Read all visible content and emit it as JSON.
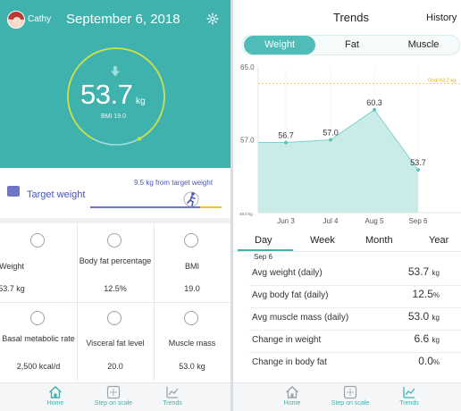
{
  "home": {
    "user_name": "Cathy",
    "date": "September 6, 2018",
    "weight_value": "53.7",
    "weight_unit": "kg",
    "bmi_text": "BMI 19.0",
    "goal_progress": 0.84,
    "target_label": "Target weight",
    "target_note": "9.5 kg from target weight",
    "tiles": [
      {
        "icon": "scale-icon",
        "label": "Weight",
        "value": "53.7 kg"
      },
      {
        "icon": "body-fat-icon",
        "label": "Body fat percentage",
        "value": "12.5%"
      },
      {
        "icon": "bmi-icon",
        "label": "BMI",
        "value": "19.0"
      },
      {
        "icon": "metabolic-rate-icon",
        "label": "Basal metabolic rate",
        "value": "2,500 kcal/d"
      },
      {
        "icon": "visceral-fat-icon",
        "label": "Visceral fat level",
        "value": "20.0"
      },
      {
        "icon": "muscle-mass-icon",
        "label": "Muscle mass",
        "value": "53.0 kg"
      }
    ],
    "nav": [
      {
        "icon": "home-icon",
        "label": "Home",
        "active": true
      },
      {
        "icon": "step-on-scale-icon",
        "label": "Step on scale",
        "active": false
      },
      {
        "icon": "trends-icon",
        "label": "Trends",
        "active": false
      }
    ]
  },
  "trends": {
    "title": "Trends",
    "history_label": "History",
    "segments": [
      {
        "label": "Weight",
        "active": true
      },
      {
        "label": "Fat",
        "active": false
      },
      {
        "label": "Muscle",
        "active": false
      }
    ],
    "tabs": [
      {
        "label": "Day",
        "active": true
      },
      {
        "label": "Week",
        "active": false
      },
      {
        "label": "Month",
        "active": false
      },
      {
        "label": "Year",
        "active": false
      }
    ],
    "selected_day": "Sep 6",
    "stats": [
      {
        "label": "Avg weight (daily)",
        "value": "53.7",
        "unit": "kg"
      },
      {
        "label": "Avg body fat (daily)",
        "value": "12.5",
        "unit": "%"
      },
      {
        "label": "Avg muscle mass (daily)",
        "value": "53.0",
        "unit": "kg"
      },
      {
        "label": "Change in weight",
        "value": "6.6",
        "unit": "kg"
      },
      {
        "label": "Change in body fat",
        "value": "0.0",
        "unit": "%"
      }
    ],
    "nav": [
      {
        "icon": "home-icon",
        "label": "Home",
        "active": false
      },
      {
        "icon": "step-on-scale-icon",
        "label": "Step on scale",
        "active": false
      },
      {
        "icon": "trends-icon",
        "label": "Trends",
        "active": true
      }
    ]
  },
  "colors": {
    "teal": "#3fb2ae",
    "accent_blue": "#4a56b8",
    "goal_yellow": "#f2c230",
    "area_fill": "#c9ece9",
    "line": "#7fd0cb"
  },
  "chart_data": {
    "type": "area",
    "title": "",
    "xlabel": "",
    "ylabel": "",
    "x_tick_labels": [
      "Jun 3",
      "Jul 4",
      "Aug 5",
      "Sep 6"
    ],
    "y_tick_labels": [
      "65.0",
      "57.0",
      "49.0 kg"
    ],
    "ylim": [
      49.0,
      65.0
    ],
    "goal": {
      "label": "Goal 63.2 kg",
      "value": 63.2
    },
    "series": [
      {
        "x": [
          "Jun 3",
          "Jul 4",
          "Aug 5",
          "Sep 6"
        ],
        "values": [
          56.7,
          57.0,
          60.3,
          53.7
        ],
        "labels": [
          "56.7",
          "57.0",
          "60.3",
          "53.7"
        ]
      }
    ],
    "grid": true
  }
}
